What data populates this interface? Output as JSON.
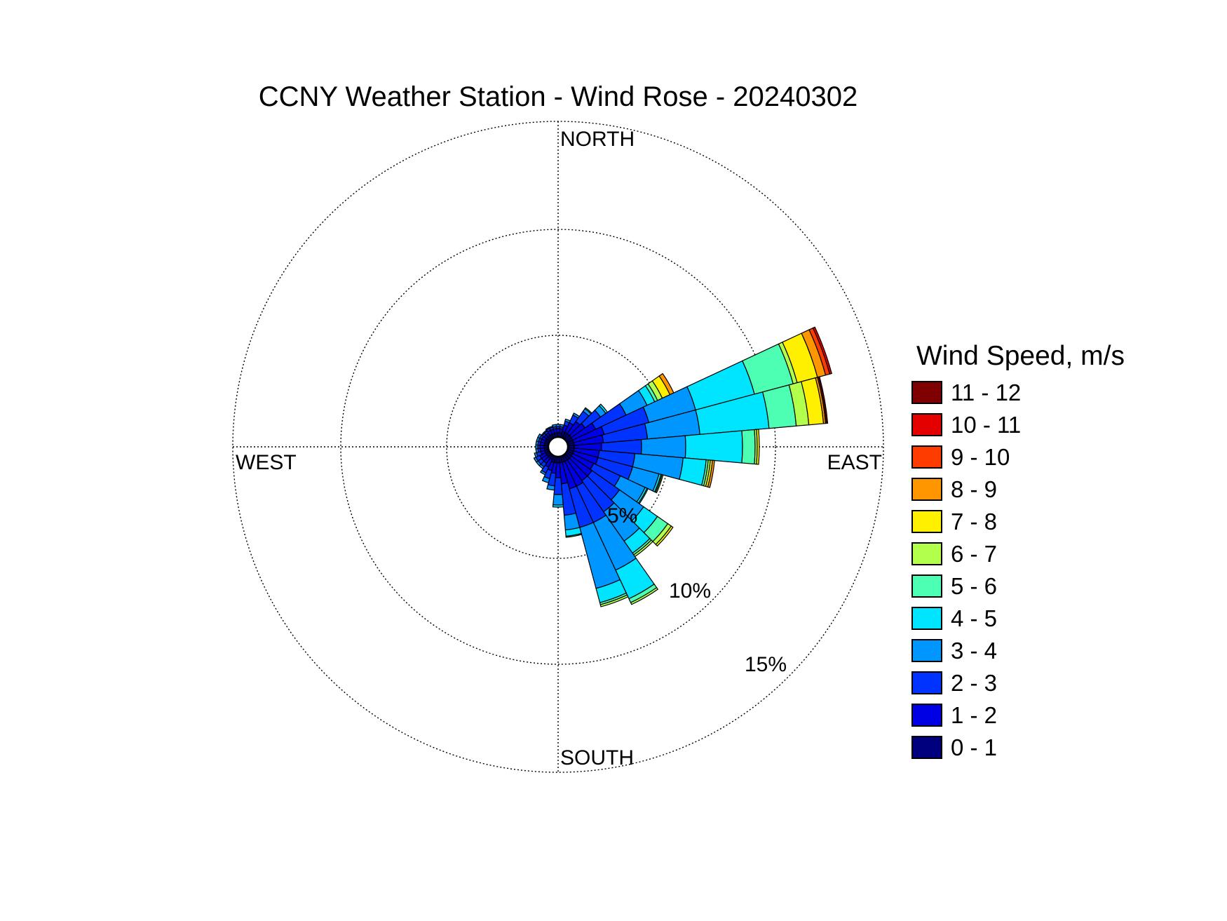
{
  "chart_data": {
    "type": "wind-rose",
    "title": "CCNY Weather Station - Wind Rose - 20240302",
    "direction_labels": {
      "north": "NORTH",
      "south": "SOUTH",
      "east": "EAST",
      "west": "WEST"
    },
    "ring_labels": [
      "5%",
      "10%",
      "15%"
    ],
    "rings_percent": [
      5,
      10,
      15
    ],
    "max_percent": 15,
    "legend_title": "Wind Speed, m/s",
    "legend_placement": "right",
    "bins": [
      {
        "label": "0 - 1",
        "color": "#00007F"
      },
      {
        "label": "1 - 2",
        "color": "#0000E5"
      },
      {
        "label": "2 - 3",
        "color": "#0033FF"
      },
      {
        "label": "3 - 4",
        "color": "#0096FF"
      },
      {
        "label": "4 - 5",
        "color": "#00E5FF"
      },
      {
        "label": "5 - 6",
        "color": "#4CFFB2"
      },
      {
        "label": "6 - 7",
        "color": "#B2FF4C"
      },
      {
        "label": "7 - 8",
        "color": "#FFF000"
      },
      {
        "label": "8 - 9",
        "color": "#FF9600"
      },
      {
        "label": "9 - 10",
        "color": "#FF3C00"
      },
      {
        "label": "10 - 11",
        "color": "#E50000"
      },
      {
        "label": "11 - 12",
        "color": "#7F0000"
      }
    ],
    "sector_width_deg": 10,
    "sectors": [
      {
        "dir": 0,
        "cum": [
          0.2,
          0.4,
          0.5,
          0.6
        ]
      },
      {
        "dir": 10,
        "cum": [
          0.2,
          0.4,
          0.5,
          0.6
        ]
      },
      {
        "dir": 20,
        "cum": [
          0.3,
          0.6,
          0.8,
          0.9
        ]
      },
      {
        "dir": 30,
        "cum": [
          0.3,
          0.8,
          1.2,
          1.3
        ]
      },
      {
        "dir": 40,
        "cum": [
          0.3,
          1.0,
          1.6,
          1.75,
          1.8
        ]
      },
      {
        "dir": 50,
        "cum": [
          0.3,
          1.1,
          2.0,
          2.3,
          2.4
        ]
      },
      {
        "dir": 60,
        "cum": [
          0.3,
          1.5,
          3.1,
          4.2,
          4.6,
          4.75,
          5.0,
          5.4,
          5.6
        ]
      },
      {
        "dir": 70,
        "cum": [
          0.3,
          1.8,
          4.0,
          6.3,
          9.2,
          11.1,
          11.3,
          12.3,
          12.7,
          12.9,
          13.0
        ]
      },
      {
        "dir": 80,
        "cum": [
          0.3,
          1.7,
          3.8,
          6.3,
          9.6,
          10.9,
          11.5,
          12.2,
          12.3,
          12.35,
          12.4
        ]
      },
      {
        "dir": 90,
        "cum": [
          0.3,
          1.6,
          3.5,
          5.6,
          8.3,
          8.9,
          9.0,
          9.1
        ]
      },
      {
        "dir": 100,
        "cum": [
          0.3,
          1.5,
          3.2,
          5.5,
          6.6,
          6.7,
          6.8,
          6.9,
          7.0
        ]
      },
      {
        "dir": 110,
        "cum": [
          0.3,
          1.5,
          3.2,
          4.5,
          4.6,
          4.65,
          4.7
        ]
      },
      {
        "dir": 120,
        "cum": [
          0.3,
          1.4,
          2.8,
          4.1,
          4.2,
          4.25
        ]
      },
      {
        "dir": 130,
        "cum": [
          0.3,
          1.5,
          3.1,
          4.5,
          5.3,
          5.9,
          6.1,
          6.2
        ]
      },
      {
        "dir": 140,
        "cum": [
          0.3,
          1.5,
          3.3,
          5.0,
          5.7,
          5.8,
          5.9
        ]
      },
      {
        "dir": 150,
        "cum": [
          0.3,
          1.6,
          3.5,
          6.0,
          7.5,
          7.7,
          7.8
        ]
      },
      {
        "dir": 160,
        "cum": [
          0.3,
          1.6,
          3.5,
          6.5,
          7.2,
          7.3,
          7.4
        ]
      },
      {
        "dir": 170,
        "cum": [
          0.3,
          1.3,
          2.8,
          3.5,
          3.8,
          3.85
        ]
      },
      {
        "dir": 180,
        "cum": [
          0.3,
          1.0,
          1.8,
          2.3,
          2.4
        ]
      },
      {
        "dir": 190,
        "cum": [
          0.3,
          0.8,
          1.4,
          1.6
        ]
      },
      {
        "dir": 200,
        "cum": [
          0.3,
          0.7,
          1.1,
          1.3
        ]
      },
      {
        "dir": 210,
        "cum": [
          0.2,
          0.6,
          0.9,
          1.0
        ]
      },
      {
        "dir": 220,
        "cum": [
          0.2,
          0.5,
          0.7,
          0.8
        ]
      },
      {
        "dir": 230,
        "cum": [
          0.2,
          0.5,
          0.7,
          0.8
        ]
      },
      {
        "dir": 240,
        "cum": [
          0.2,
          0.5,
          0.7,
          0.8
        ]
      },
      {
        "dir": 250,
        "cum": [
          0.2,
          0.4,
          0.6,
          0.7
        ]
      },
      {
        "dir": 260,
        "cum": [
          0.2,
          0.4,
          0.5,
          0.6
        ]
      },
      {
        "dir": 270,
        "cum": [
          0.2,
          0.4,
          0.5,
          0.6
        ]
      },
      {
        "dir": 280,
        "cum": [
          0.2,
          0.4,
          0.5,
          0.6
        ]
      },
      {
        "dir": 290,
        "cum": [
          0.2,
          0.4,
          0.5,
          0.6
        ]
      },
      {
        "dir": 300,
        "cum": [
          0.2,
          0.4,
          0.5,
          0.6
        ]
      },
      {
        "dir": 310,
        "cum": [
          0.2,
          0.35,
          0.45,
          0.5
        ]
      },
      {
        "dir": 320,
        "cum": [
          0.2,
          0.35,
          0.45,
          0.5
        ]
      },
      {
        "dir": 330,
        "cum": [
          0.2,
          0.4,
          0.5,
          0.55
        ]
      },
      {
        "dir": 340,
        "cum": [
          0.2,
          0.4,
          0.5,
          0.55
        ]
      },
      {
        "dir": 350,
        "cum": [
          0.2,
          0.4,
          0.5,
          0.6
        ]
      }
    ]
  }
}
